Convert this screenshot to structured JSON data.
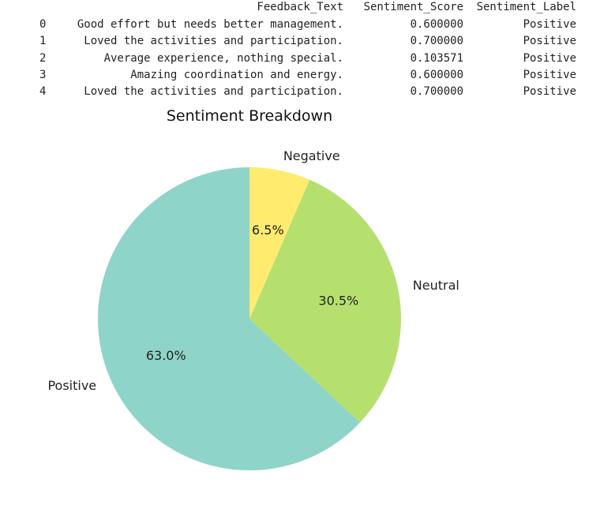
{
  "dataframe": {
    "columns": [
      "Feedback_Text",
      "Sentiment_Score",
      "Sentiment_Label"
    ],
    "rows": [
      {
        "index": "0",
        "text": "Good effort but needs better management.",
        "score": "0.600000",
        "label": "Positive"
      },
      {
        "index": "1",
        "text": "Loved the activities and participation.",
        "score": "0.700000",
        "label": "Positive"
      },
      {
        "index": "2",
        "text": "Average experience, nothing special.",
        "score": "0.103571",
        "label": "Positive"
      },
      {
        "index": "3",
        "text": "Amazing coordination and energy.",
        "score": "0.600000",
        "label": "Positive"
      },
      {
        "index": "4",
        "text": "Loved the activities and participation.",
        "score": "0.700000",
        "label": "Positive"
      }
    ]
  },
  "chart_data": {
    "type": "pie",
    "title": "Sentiment Breakdown",
    "categories": [
      "Positive",
      "Neutral",
      "Negative"
    ],
    "values": [
      63.0,
      30.5,
      6.5
    ],
    "labels": [
      "63.0%",
      "30.5%",
      "6.5%"
    ],
    "colors": [
      "#8fd4c8",
      "#b5e06e",
      "#ffeb6e"
    ],
    "start_angle_deg": 90,
    "direction": "clockwise-from-top-reversed"
  }
}
